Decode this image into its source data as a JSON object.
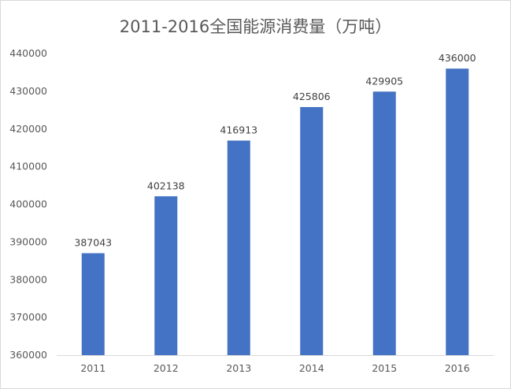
{
  "chart_data": {
    "type": "bar",
    "title": "2011-2016全国能源消费量（万吨）",
    "categories": [
      "2011",
      "2012",
      "2013",
      "2014",
      "2015",
      "2016"
    ],
    "values": [
      387043,
      402138,
      416913,
      425806,
      429905,
      436000
    ],
    "data_labels": [
      "387043",
      "402138",
      "416913",
      "425806",
      "429905",
      "436000"
    ],
    "ylim": [
      360000,
      440000
    ],
    "yticks": [
      360000,
      370000,
      380000,
      390000,
      400000,
      410000,
      420000,
      430000,
      440000
    ],
    "grid": false,
    "legend": "none",
    "bar_color": "#4472c4"
  }
}
